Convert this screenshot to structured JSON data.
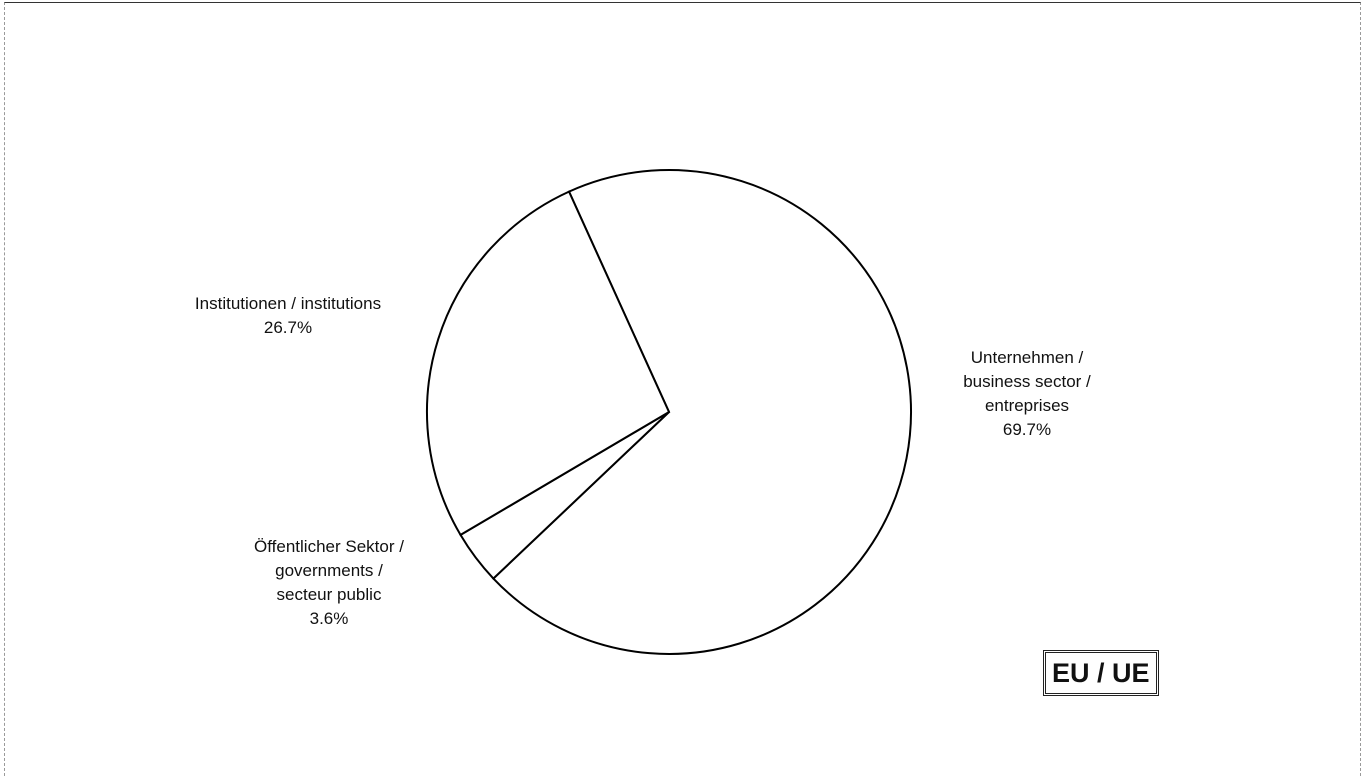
{
  "chart_data": {
    "type": "pie",
    "badge": "EU / UE",
    "slices": [
      {
        "label_lines": [
          "Unternehmen /",
          "business sector /",
          "entreprises"
        ],
        "value": 69.7,
        "value_label": "69.7%",
        "color": "#ffffff"
      },
      {
        "label_lines": [
          "Öffentlicher Sektor /",
          "governments /",
          "secteur public"
        ],
        "value": 3.6,
        "value_label": "3.6%",
        "color": "#ffffff"
      },
      {
        "label_lines": [
          "Institutionen / institutions"
        ],
        "value": 26.7,
        "value_label": "26.7%",
        "color": "#ffffff"
      }
    ],
    "start_angle_deg": -24.4,
    "direction": "clockwise",
    "legend": "none",
    "outline_color": "#000000"
  }
}
